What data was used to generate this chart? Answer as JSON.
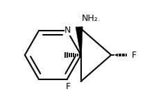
{
  "background": "#ffffff",
  "line_color": "#000000",
  "line_width": 1.5,
  "font_size_label": 9,
  "NH2_label": "NH₂",
  "N_label": "N",
  "F_label": "F",
  "fig_width": 2.12,
  "fig_height": 1.58,
  "dpi": 100
}
